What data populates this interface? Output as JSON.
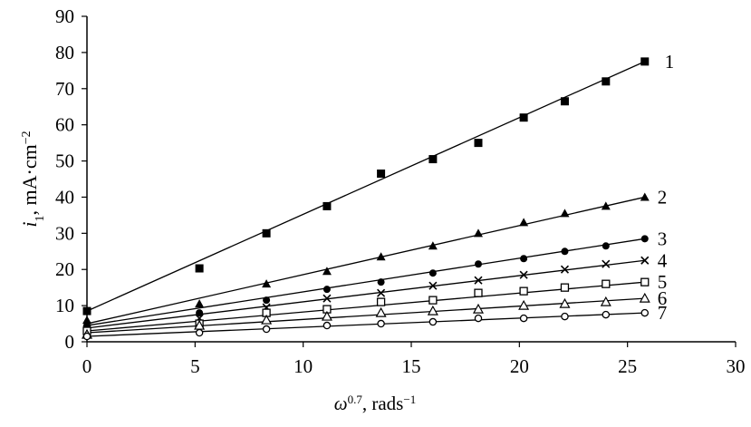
{
  "chart_data": {
    "type": "scatter",
    "title": "",
    "xlabel": {
      "symbol": "ω",
      "exponent": "0.7",
      "unit": ", rads",
      "unit_exponent": "−1"
    },
    "ylabel": {
      "symbol": "i",
      "subscript": "1",
      "unit": ", mA·cm",
      "unit_exponent": "−2"
    },
    "xlim": [
      0,
      30
    ],
    "ylim": [
      0,
      90
    ],
    "xticks": [
      "0",
      "5",
      "10",
      "15",
      "20",
      "25",
      "30"
    ],
    "yticks": [
      "0",
      "10",
      "20",
      "30",
      "40",
      "50",
      "60",
      "70",
      "80",
      "90"
    ],
    "grid": false,
    "series": [
      {
        "name": "1",
        "marker": "square-filled",
        "x": [
          0,
          5.2,
          8.3,
          11.1,
          13.6,
          16.0,
          18.1,
          20.2,
          22.1,
          24.0,
          25.8
        ],
        "y": [
          8.5,
          20.3,
          30.0,
          37.5,
          46.5,
          50.5,
          55.0,
          62.0,
          66.5,
          72.0,
          77.5
        ],
        "fit": [
          8.5,
          77.5
        ]
      },
      {
        "name": "2",
        "marker": "triangle-filled",
        "x": [
          0,
          5.2,
          8.3,
          11.1,
          13.6,
          16.0,
          18.1,
          20.2,
          22.1,
          24.0,
          25.8
        ],
        "y": [
          6.0,
          10.5,
          16.0,
          19.5,
          23.5,
          26.5,
          30.0,
          33.0,
          35.5,
          37.5,
          40.0
        ],
        "fit": [
          5.0,
          40.0
        ]
      },
      {
        "name": "3",
        "marker": "circle-filled",
        "x": [
          0,
          5.2,
          8.3,
          11.1,
          13.6,
          16.0,
          18.1,
          20.2,
          22.1,
          24.0,
          25.8
        ],
        "y": [
          4.5,
          8.0,
          11.5,
          14.5,
          16.5,
          19.0,
          21.5,
          23.0,
          25.0,
          26.5,
          28.5
        ],
        "fit": [
          4.5,
          28.5
        ]
      },
      {
        "name": "4",
        "marker": "cross",
        "x": [
          0,
          5.2,
          8.3,
          11.1,
          13.6,
          16.0,
          18.1,
          20.2,
          22.1,
          24.0,
          25.8
        ],
        "y": [
          3.5,
          6.5,
          9.5,
          12.0,
          13.5,
          15.5,
          17.0,
          18.5,
          20.0,
          21.5,
          22.5
        ],
        "fit": [
          3.8,
          22.5
        ]
      },
      {
        "name": "5",
        "marker": "square-open",
        "x": [
          0,
          5.2,
          8.3,
          11.1,
          13.6,
          16.0,
          18.1,
          20.2,
          22.1,
          24.0,
          25.8
        ],
        "y": [
          3.0,
          5.0,
          8.0,
          9.0,
          11.0,
          11.5,
          13.5,
          14.0,
          15.0,
          16.0,
          16.5
        ],
        "fit": [
          3.0,
          16.5
        ]
      },
      {
        "name": "6",
        "marker": "triangle-open",
        "x": [
          0,
          5.2,
          8.3,
          11.1,
          13.6,
          16.0,
          18.1,
          20.2,
          22.1,
          24.0,
          25.8
        ],
        "y": [
          2.0,
          4.5,
          6.0,
          7.0,
          8.0,
          8.5,
          9.0,
          10.0,
          10.5,
          11.0,
          12.0
        ],
        "fit": [
          2.5,
          12.0
        ]
      },
      {
        "name": "7",
        "marker": "circle-open",
        "x": [
          0,
          5.2,
          8.3,
          11.1,
          13.6,
          16.0,
          18.1,
          20.2,
          22.1,
          24.0,
          25.8
        ],
        "y": [
          1.5,
          2.5,
          3.5,
          4.5,
          5.0,
          5.5,
          6.5,
          6.5,
          7.0,
          7.5,
          8.0
        ],
        "fit": [
          1.5,
          8.0
        ]
      }
    ]
  }
}
